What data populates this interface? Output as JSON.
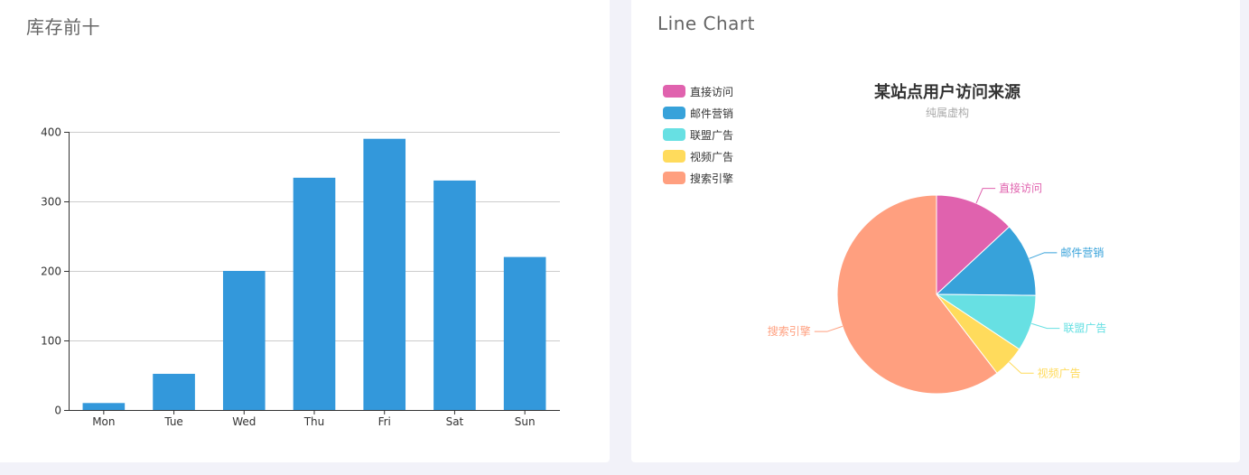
{
  "left_card": {
    "title": "库存前十"
  },
  "right_card": {
    "title": "Line Chart"
  },
  "chart_data": [
    {
      "type": "bar",
      "title": "",
      "categories": [
        "Mon",
        "Tue",
        "Wed",
        "Thu",
        "Fri",
        "Sat",
        "Sun"
      ],
      "values": [
        10,
        52,
        200,
        334,
        390,
        330,
        220
      ],
      "xlabel": "",
      "ylabel": "",
      "ylim": [
        0,
        400
      ],
      "yticks": [
        0,
        100,
        200,
        300,
        400
      ],
      "grid": true,
      "color": "#3398db"
    },
    {
      "type": "pie",
      "title": "某站点用户访问来源",
      "subtitle": "纯属虚构",
      "legend_position": "left",
      "slices": [
        {
          "name": "直接访问",
          "value": 335,
          "color": "#e062ae"
        },
        {
          "name": "邮件营销",
          "value": 310,
          "color": "#37a2da"
        },
        {
          "name": "联盟广告",
          "value": 234,
          "color": "#67e0e3"
        },
        {
          "name": "视频广告",
          "value": 135,
          "color": "#ffdb5c"
        },
        {
          "name": "搜索引擎",
          "value": 1548,
          "color": "#ff9f7f"
        }
      ]
    }
  ]
}
